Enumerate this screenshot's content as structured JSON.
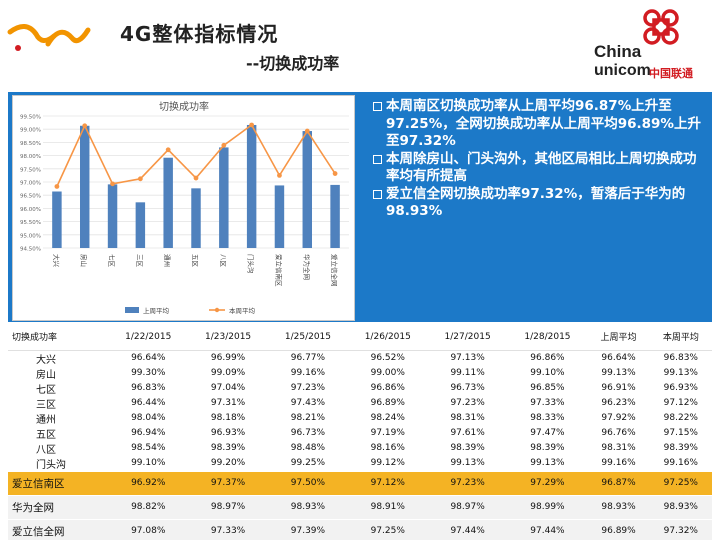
{
  "header": {
    "title": "4G整体指标情况",
    "subtitle": "--切换成功率",
    "brand_en_line1": "China",
    "brand_en_line2": "unicom",
    "brand_cn": "中国联通"
  },
  "chart_data": {
    "type": "bar",
    "title": "切换成功率",
    "categories": [
      "大兴",
      "房山",
      "七区",
      "三区",
      "通州",
      "五区",
      "八区",
      "门头沟",
      "爱立信南区",
      "华为全网",
      "爱立信全网"
    ],
    "series": [
      {
        "name": "上周平均",
        "type": "bar",
        "color": "#4f81bd",
        "values": [
          96.64,
          99.13,
          96.91,
          96.23,
          97.92,
          96.76,
          98.31,
          99.16,
          96.87,
          98.93,
          96.89
        ]
      },
      {
        "name": "本周平均",
        "type": "line",
        "color": "#f79646",
        "values": [
          96.83,
          99.13,
          96.93,
          97.12,
          98.22,
          97.15,
          98.39,
          99.16,
          97.25,
          98.93,
          97.32
        ]
      }
    ],
    "ylim": [
      94.5,
      99.5
    ],
    "yticks": [
      "99.50%",
      "99.00%",
      "98.50%",
      "98.00%",
      "97.50%",
      "97.00%",
      "96.50%",
      "96.00%",
      "95.50%",
      "95.00%",
      "94.50%"
    ],
    "grid": true,
    "legend": "bottom"
  },
  "notes": [
    "本周南区切换成功率从上周平均96.87%上升至97.25%，全网切换成功率从上周平均96.89%上升至97.32%",
    "本周除房山、门头沟外，其他区局相比上周切换成功率均有所提高",
    "爱立信全网切换成功率97.32%，暂落后于华为的98.93%"
  ],
  "table": {
    "headers": [
      "切换成功率",
      "1/22/2015",
      "1/23/2015",
      "1/25/2015",
      "1/26/2015",
      "1/27/2015",
      "1/28/2015",
      "上周平均",
      "本周平均"
    ],
    "regions": [
      {
        "name": "大兴",
        "values": [
          "96.64%",
          "96.99%",
          "96.77%",
          "96.52%",
          "97.13%",
          "96.86%",
          "96.64%",
          "96.83%"
        ]
      },
      {
        "name": "房山",
        "values": [
          "99.30%",
          "99.09%",
          "99.16%",
          "99.00%",
          "99.11%",
          "99.10%",
          "99.13%",
          "99.13%"
        ]
      },
      {
        "name": "七区",
        "values": [
          "96.83%",
          "97.04%",
          "97.23%",
          "96.86%",
          "96.73%",
          "96.85%",
          "96.91%",
          "96.93%"
        ]
      },
      {
        "name": "三区",
        "values": [
          "96.44%",
          "97.31%",
          "97.43%",
          "96.89%",
          "97.23%",
          "97.33%",
          "96.23%",
          "97.12%"
        ]
      },
      {
        "name": "通州",
        "values": [
          "98.04%",
          "98.18%",
          "98.21%",
          "98.24%",
          "98.31%",
          "98.33%",
          "97.92%",
          "98.22%"
        ]
      },
      {
        "name": "五区",
        "values": [
          "96.94%",
          "96.93%",
          "96.73%",
          "97.19%",
          "97.61%",
          "97.47%",
          "96.76%",
          "97.15%"
        ]
      },
      {
        "name": "八区",
        "values": [
          "98.54%",
          "98.39%",
          "98.48%",
          "98.16%",
          "98.39%",
          "98.39%",
          "98.31%",
          "98.39%"
        ]
      },
      {
        "name": "门头沟",
        "values": [
          "99.10%",
          "99.20%",
          "99.25%",
          "99.12%",
          "99.13%",
          "99.13%",
          "99.16%",
          "99.16%"
        ]
      }
    ],
    "summary": [
      {
        "name": "爱立信南区",
        "values": [
          "96.92%",
          "97.37%",
          "97.50%",
          "97.12%",
          "97.23%",
          "97.29%",
          "96.87%",
          "97.25%"
        ]
      },
      {
        "name": "华为全网",
        "values": [
          "98.82%",
          "98.97%",
          "98.93%",
          "98.91%",
          "98.97%",
          "98.99%",
          "98.93%",
          "98.93%"
        ]
      },
      {
        "name": "爱立信全网",
        "values": [
          "97.08%",
          "97.33%",
          "97.39%",
          "97.25%",
          "97.44%",
          "97.44%",
          "96.89%",
          "97.32%"
        ]
      }
    ]
  }
}
